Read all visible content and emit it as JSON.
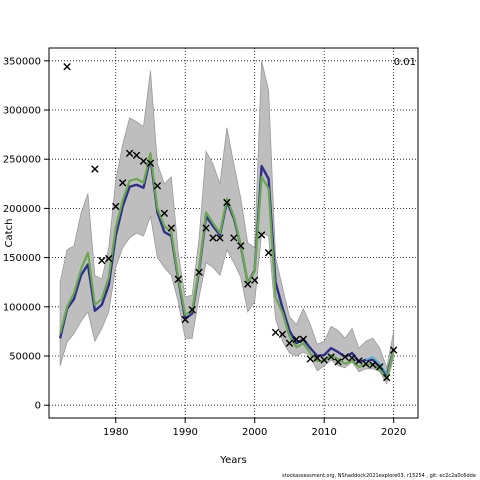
{
  "chart_data": {
    "type": "line",
    "title": "",
    "xlabel": "Years",
    "ylabel": "Catch",
    "annotation": "0.01",
    "xlim": [
      1970.4,
      2023.5
    ],
    "ylim": [
      -13000,
      363000
    ],
    "x_ticks": [
      1980,
      1990,
      2000,
      2010,
      2020
    ],
    "y_ticks": [
      0,
      50000,
      100000,
      150000,
      200000,
      250000,
      300000,
      350000
    ],
    "grid": true,
    "colors": {
      "band": "#bebebe",
      "band_edge": "#9a9a9a",
      "primary": "#2e2e8c",
      "secondary": "#6aa84f",
      "tertiary": "#4fb3c9",
      "observed": "#000000"
    },
    "x": [
      1972,
      1973,
      1974,
      1975,
      1976,
      1977,
      1978,
      1979,
      1980,
      1981,
      1982,
      1983,
      1984,
      1985,
      1986,
      1987,
      1988,
      1989,
      1990,
      1991,
      1992,
      1993,
      1994,
      1995,
      1996,
      1997,
      1998,
      1999,
      2000,
      2001,
      2002,
      2003,
      2004,
      2005,
      2006,
      2007,
      2008,
      2009,
      2010,
      2011,
      2012,
      2013,
      2014,
      2015,
      2016,
      2017,
      2018,
      2019,
      2020
    ],
    "band_upper": [
      125000,
      158000,
      162000,
      195000,
      215000,
      132000,
      128000,
      160000,
      228000,
      265000,
      292000,
      288000,
      283000,
      340000,
      245000,
      225000,
      232000,
      155000,
      110000,
      112000,
      170000,
      258000,
      245000,
      225000,
      282000,
      245000,
      210000,
      165000,
      160000,
      350000,
      320000,
      150000,
      120000,
      90000,
      82000,
      98000,
      82000,
      62000,
      65000,
      80000,
      76000,
      68000,
      78000,
      58000,
      65000,
      68000,
      58000,
      38000,
      75000
    ],
    "band_lower": [
      40000,
      64000,
      73000,
      85000,
      95000,
      65000,
      78000,
      95000,
      140000,
      160000,
      170000,
      175000,
      172000,
      192000,
      150000,
      140000,
      132000,
      105000,
      68000,
      68000,
      110000,
      145000,
      140000,
      132000,
      158000,
      145000,
      130000,
      95000,
      105000,
      175000,
      172000,
      88000,
      65000,
      53000,
      50000,
      54000,
      50000,
      35000,
      40000,
      46000,
      40000,
      38000,
      44000,
      34000,
      37000,
      37000,
      34000,
      22000,
      48000
    ],
    "series": [
      {
        "values": [
          68000,
          98000,
          108000,
          132000,
          143000,
          96000,
          102000,
          122000,
          172000,
          202000,
          222000,
          224000,
          221000,
          252000,
          196000,
          176000,
          172000,
          128000,
          88000,
          93000,
          137000,
          192000,
          182000,
          173000,
          207000,
          190000,
          162000,
          124000,
          137000,
          243000,
          230000,
          125000,
          99000,
          76000,
          63000,
          67000,
          58000,
          50000,
          51000,
          58000,
          54000,
          49000,
          53000,
          44000,
          46000,
          46000,
          39000,
          30000,
          57000
        ]
      },
      {
        "values": [
          73000,
          100000,
          114000,
          138000,
          155000,
          102000,
          108000,
          130000,
          180000,
          208000,
          228000,
          230000,
          226000,
          256000,
          200000,
          182000,
          176000,
          130000,
          92000,
          96000,
          139000,
          196000,
          185000,
          175000,
          210000,
          192000,
          163000,
          124000,
          136000,
          232000,
          220000,
          110000,
          94000,
          70000,
          59000,
          63000,
          53000,
          45000,
          45000,
          51000,
          47000,
          42000,
          45000,
          39000,
          41000,
          42000,
          36000,
          27000,
          56000
        ]
      },
      {
        "values": [
          null,
          null,
          null,
          null,
          null,
          null,
          null,
          null,
          null,
          null,
          null,
          null,
          null,
          null,
          null,
          null,
          null,
          null,
          null,
          null,
          null,
          null,
          null,
          null,
          null,
          null,
          null,
          null,
          null,
          null,
          null,
          null,
          null,
          null,
          null,
          null,
          null,
          null,
          null,
          null,
          null,
          null,
          null,
          null,
          46000,
          49000,
          42000,
          32000,
          null
        ]
      }
    ],
    "observed": [
      [
        1973,
        344000
      ],
      [
        1977,
        240000
      ],
      [
        1978,
        147000
      ],
      [
        1979,
        149000
      ],
      [
        1980,
        202000
      ],
      [
        1981,
        226000
      ],
      [
        1982,
        256000
      ],
      [
        1983,
        254000
      ],
      [
        1984,
        248000
      ],
      [
        1985,
        246000
      ],
      [
        1986,
        223000
      ],
      [
        1987,
        195000
      ],
      [
        1988,
        180000
      ],
      [
        1989,
        128000
      ],
      [
        1990,
        87000
      ],
      [
        1991,
        97000
      ],
      [
        1992,
        135000
      ],
      [
        1993,
        180000
      ],
      [
        1994,
        170000
      ],
      [
        1995,
        170000
      ],
      [
        1996,
        206000
      ],
      [
        1997,
        170000
      ],
      [
        1998,
        162000
      ],
      [
        1999,
        123000
      ],
      [
        2000,
        127000
      ],
      [
        2001,
        173000
      ],
      [
        2002,
        155000
      ],
      [
        2003,
        74000
      ],
      [
        2004,
        72000
      ],
      [
        2005,
        63000
      ],
      [
        2006,
        67000
      ],
      [
        2007,
        67000
      ],
      [
        2008,
        47000
      ],
      [
        2009,
        48000
      ],
      [
        2010,
        46000
      ],
      [
        2011,
        49000
      ],
      [
        2012,
        44000
      ],
      [
        2013,
        49000
      ],
      [
        2014,
        48000
      ],
      [
        2015,
        45000
      ],
      [
        2016,
        42000
      ],
      [
        2017,
        41000
      ],
      [
        2018,
        39000
      ],
      [
        2019,
        28000
      ],
      [
        2020,
        56000
      ]
    ]
  },
  "footer": {
    "text": "stockassessment.org, NShaddock2021explore03, r15254 , git: ec2c2a0c6dde"
  }
}
